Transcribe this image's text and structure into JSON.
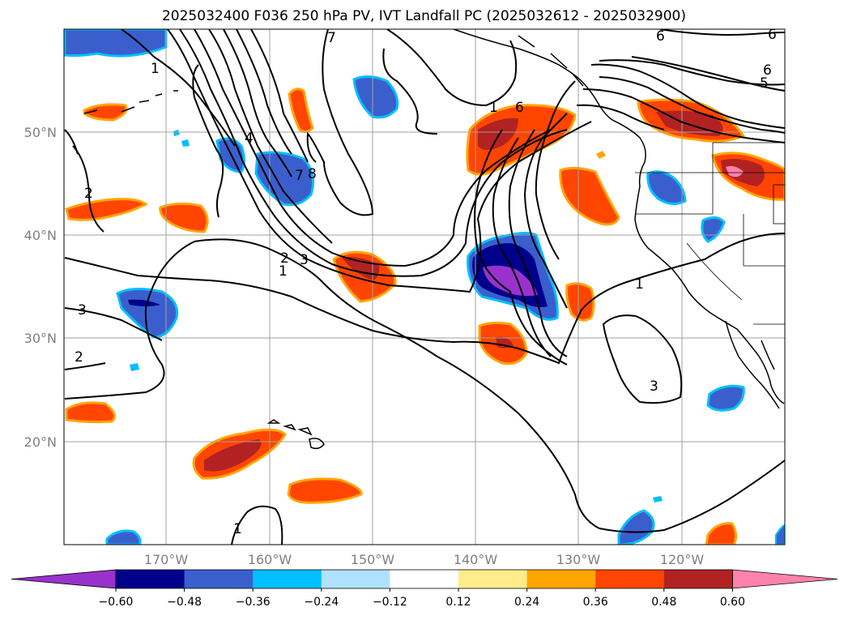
{
  "title": "2025032400 F036 250 hPa PV, IVT Landfall PC (2025032612 - 2025032900)",
  "lat_labels": [
    "50°N",
    "40°N",
    "30°N",
    "20°N"
  ],
  "lon_labels": [
    "170°W",
    "160°W",
    "150°W",
    "140°W",
    "130°W",
    "120°W"
  ],
  "colorbar": {
    "ticks": [
      "−0.60",
      "−0.48",
      "−0.36",
      "−0.24",
      "−0.12",
      "0.12",
      "0.24",
      "0.36",
      "0.48",
      "0.60"
    ],
    "colors": [
      "#9932cc",
      "#00008b",
      "#3a5fcd",
      "#00bfff",
      "#b0e2ff",
      "#ffffff",
      "#ffec8b",
      "#ffa500",
      "#ff4500",
      "#b22222",
      "#ff82ab"
    ]
  },
  "contour_labels": [
    "1",
    "1",
    "1",
    "1",
    "1",
    "2",
    "2",
    "2",
    "3",
    "3",
    "3",
    "4",
    "6",
    "6",
    "6",
    "5",
    "7",
    "7",
    "8",
    "6"
  ]
}
